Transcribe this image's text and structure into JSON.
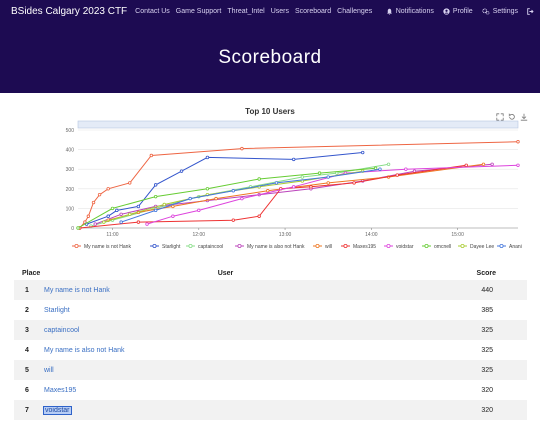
{
  "nav": {
    "brand": "BSides Calgary 2023 CTF",
    "links": [
      "Contact Us",
      "Game Support",
      "Threat_Intel",
      "Users",
      "Scoreboard",
      "Challenges"
    ],
    "notifications": "Notifications",
    "profile": "Profile",
    "settings": "Settings"
  },
  "page": {
    "title": "Scoreboard"
  },
  "chart_data": {
    "type": "line",
    "title": "Top 10 Users",
    "xlabel": "",
    "ylabel": "",
    "y_ticks": [
      0,
      100,
      200,
      300,
      400,
      500
    ],
    "ylim": [
      0,
      500
    ],
    "x_ticks": [
      "11:00",
      "12:00",
      "13:00",
      "14:00",
      "15:00"
    ],
    "x_range_hours": [
      10.6,
      15.7
    ],
    "grid": true,
    "legend_position": "bottom",
    "series": [
      {
        "name": "My name is not Hank",
        "color": "#ee6644",
        "points": [
          [
            10.62,
            0
          ],
          [
            10.68,
            30
          ],
          [
            10.72,
            60
          ],
          [
            10.78,
            130
          ],
          [
            10.85,
            170
          ],
          [
            10.95,
            200
          ],
          [
            11.2,
            230
          ],
          [
            11.45,
            370
          ],
          [
            12.5,
            405
          ],
          [
            15.7,
            440
          ]
        ]
      },
      {
        "name": "Starlight",
        "color": "#3355cc",
        "points": [
          [
            10.7,
            20
          ],
          [
            10.95,
            60
          ],
          [
            11.05,
            90
          ],
          [
            11.3,
            110
          ],
          [
            11.5,
            220
          ],
          [
            11.8,
            290
          ],
          [
            12.1,
            360
          ],
          [
            13.1,
            350
          ],
          [
            13.9,
            385
          ]
        ]
      },
      {
        "name": "captaincool",
        "color": "#88dd88",
        "points": [
          [
            10.75,
            10
          ],
          [
            11.0,
            40
          ],
          [
            11.5,
            100
          ],
          [
            12.0,
            160
          ],
          [
            12.6,
            210
          ],
          [
            13.2,
            260
          ],
          [
            13.6,
            280
          ],
          [
            14.2,
            325
          ]
        ]
      },
      {
        "name": "My name is also not Hank",
        "color": "#bb44bb",
        "points": [
          [
            10.8,
            20
          ],
          [
            11.1,
            70
          ],
          [
            11.5,
            110
          ],
          [
            12.1,
            140
          ],
          [
            12.7,
            170
          ],
          [
            13.3,
            200
          ],
          [
            13.9,
            240
          ],
          [
            14.5,
            290
          ],
          [
            15.4,
            325
          ]
        ]
      },
      {
        "name": "will",
        "color": "#ee7722",
        "points": [
          [
            10.95,
            40
          ],
          [
            11.3,
            80
          ],
          [
            11.7,
            110
          ],
          [
            12.2,
            150
          ],
          [
            12.8,
            190
          ],
          [
            13.5,
            230
          ],
          [
            14.2,
            260
          ],
          [
            15.3,
            325
          ]
        ]
      },
      {
        "name": "Maxes195",
        "color": "#ee3333",
        "points": [
          [
            10.62,
            0
          ],
          [
            11.3,
            30
          ],
          [
            12.4,
            40
          ],
          [
            12.7,
            60
          ],
          [
            12.95,
            200
          ],
          [
            13.3,
            210
          ],
          [
            13.8,
            230
          ],
          [
            14.3,
            270
          ],
          [
            15.1,
            320
          ]
        ]
      },
      {
        "name": "voidstar",
        "color": "#dd44dd",
        "points": [
          [
            11.4,
            20
          ],
          [
            11.7,
            60
          ],
          [
            12.0,
            90
          ],
          [
            12.5,
            150
          ],
          [
            13.1,
            210
          ],
          [
            13.7,
            280
          ],
          [
            14.4,
            300
          ],
          [
            15.7,
            320
          ]
        ]
      },
      {
        "name": "omcnell",
        "color": "#66cc33",
        "points": [
          [
            10.6,
            0
          ],
          [
            11.0,
            100
          ],
          [
            11.5,
            160
          ],
          [
            12.1,
            200
          ],
          [
            12.7,
            250
          ],
          [
            13.4,
            280
          ],
          [
            14.05,
            305
          ]
        ]
      },
      {
        "name": "Dayee Lee",
        "color": "#aacc33",
        "points": [
          [
            10.9,
            30
          ],
          [
            11.2,
            70
          ],
          [
            11.6,
            120
          ],
          [
            12.1,
            170
          ],
          [
            12.7,
            210
          ],
          [
            13.2,
            240
          ],
          [
            13.9,
            290
          ]
        ]
      },
      {
        "name": "Anani",
        "color": "#4477dd",
        "points": [
          [
            11.1,
            30
          ],
          [
            11.5,
            90
          ],
          [
            11.9,
            150
          ],
          [
            12.4,
            190
          ],
          [
            12.9,
            230
          ],
          [
            13.5,
            260
          ],
          [
            14.1,
            300
          ]
        ]
      }
    ]
  },
  "table": {
    "headers": {
      "place": "Place",
      "user": "User",
      "score": "Score"
    },
    "rows": [
      {
        "place": "1",
        "user": "My name is not Hank",
        "score": "440"
      },
      {
        "place": "2",
        "user": "Starlight",
        "score": "385"
      },
      {
        "place": "3",
        "user": "captaincool",
        "score": "325"
      },
      {
        "place": "4",
        "user": "My name is also not Hank",
        "score": "325"
      },
      {
        "place": "5",
        "user": "will",
        "score": "325"
      },
      {
        "place": "6",
        "user": "Maxes195",
        "score": "320"
      },
      {
        "place": "7",
        "user": "voidstar",
        "score": "320"
      }
    ]
  }
}
